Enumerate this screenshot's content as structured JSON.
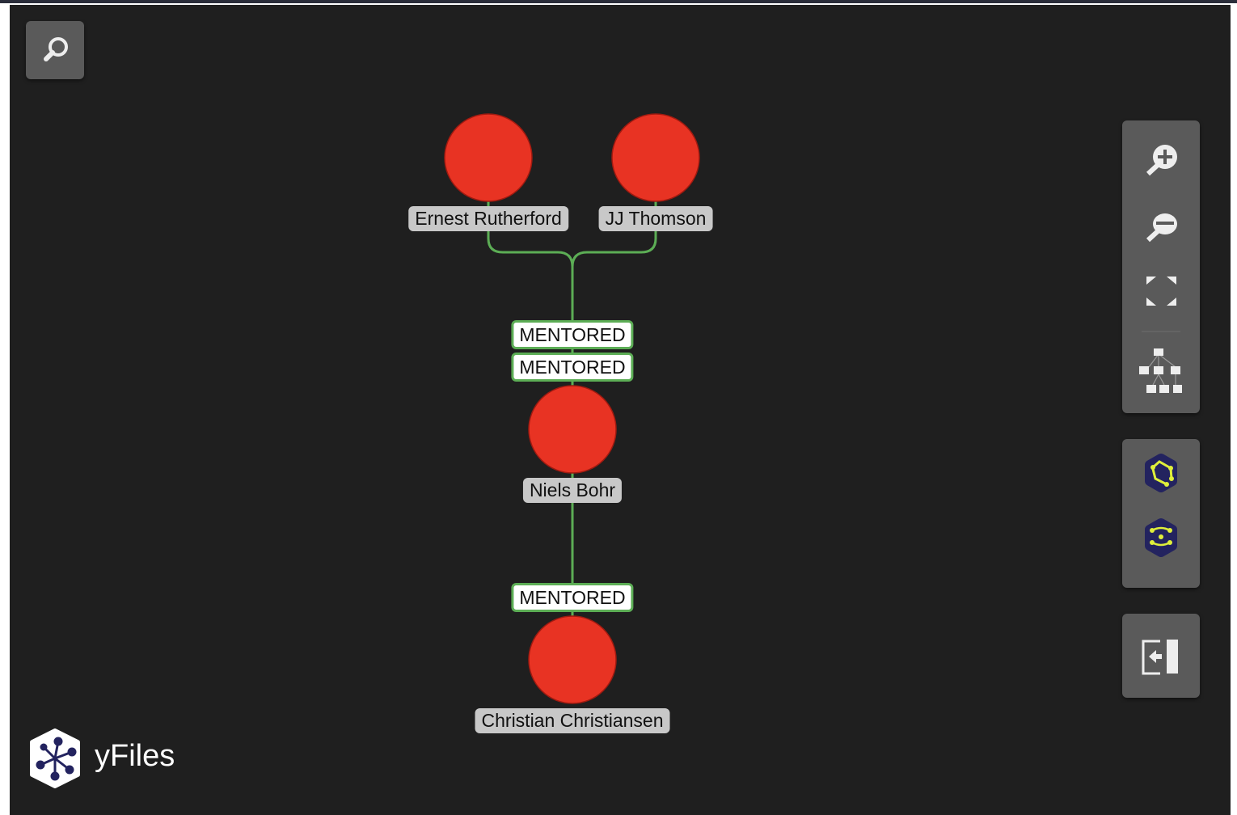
{
  "toolbar": {
    "search_icon": "search-icon",
    "zoom_in_icon": "zoom-in-icon",
    "zoom_out_icon": "zoom-out-icon",
    "fit_icon": "fit-content-icon",
    "layout_icon": "hierarchic-layout-icon",
    "organic_icon": "organic-layout-icon",
    "radial_icon": "radial-layout-icon",
    "collapse_icon": "collapse-panel-icon"
  },
  "nodes": [
    {
      "id": "rutherford",
      "label": "Ernest Rutherford"
    },
    {
      "id": "thomson",
      "label": "JJ Thomson"
    },
    {
      "id": "bohr",
      "label": "Niels Bohr"
    },
    {
      "id": "christiansen",
      "label": "Christian Christiansen"
    }
  ],
  "edges": [
    {
      "from": "rutherford",
      "to": "bohr",
      "label": "MENTORED"
    },
    {
      "from": "thomson",
      "to": "bohr",
      "label": "MENTORED"
    },
    {
      "from": "bohr",
      "to": "christiansen",
      "label": "MENTORED"
    }
  ],
  "colors": {
    "node": "#e83323",
    "edge": "#5cad55",
    "background": "#1f1f1f"
  },
  "logo": {
    "text": "yFiles"
  }
}
